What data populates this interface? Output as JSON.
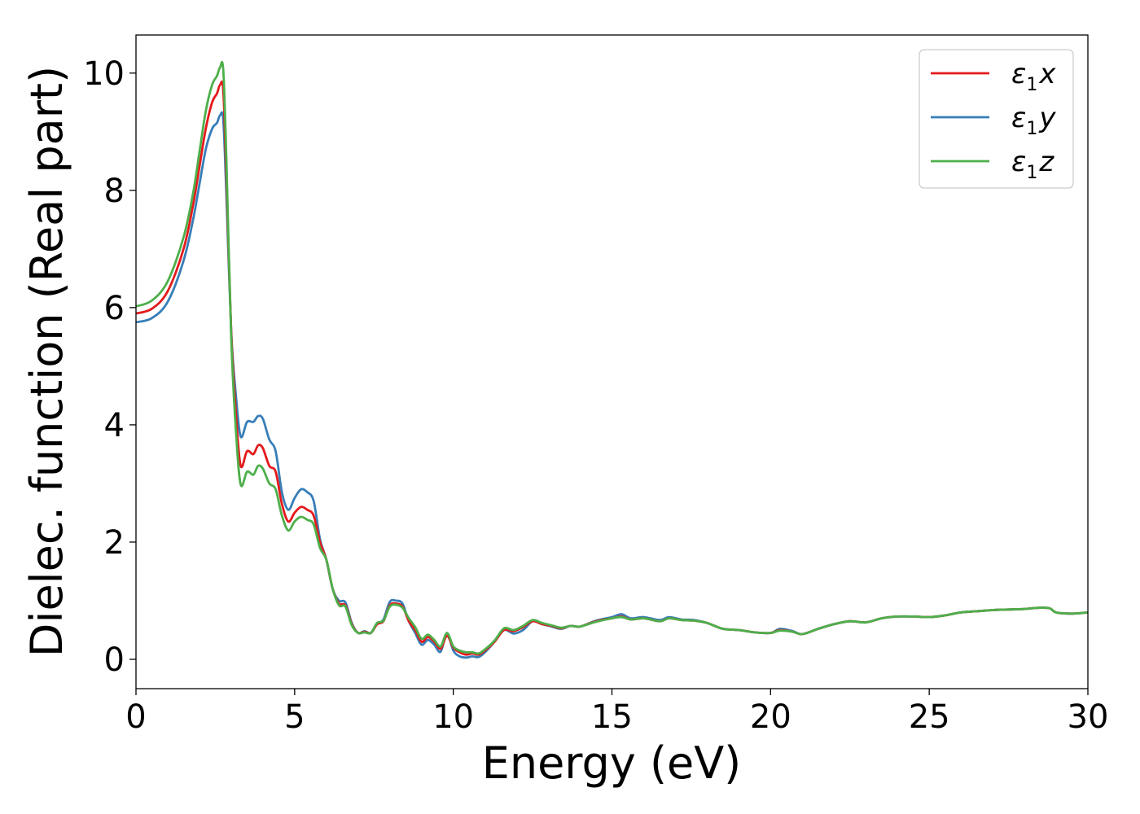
{
  "chart_data": {
    "type": "line",
    "title": "",
    "xlabel": "Energy (eV)",
    "ylabel": "Dielec. function (Real part)",
    "xlim": [
      0,
      30
    ],
    "ylim": [
      -0.5,
      10.65
    ],
    "xticks": [
      "0",
      "5",
      "10",
      "15",
      "20",
      "25",
      "30"
    ],
    "xtick_values": [
      0,
      5,
      10,
      15,
      20,
      25,
      30
    ],
    "yticks": [
      "0",
      "2",
      "4",
      "6",
      "8",
      "10"
    ],
    "ytick_values": [
      0,
      2,
      4,
      6,
      8,
      10
    ],
    "grid": false,
    "legend_position": "top-right",
    "x": [
      0,
      0.5,
      1.0,
      1.5,
      1.8,
      2.0,
      2.2,
      2.4,
      2.55,
      2.65,
      2.75,
      2.85,
      3.0,
      3.15,
      3.3,
      3.5,
      3.7,
      3.85,
      4.0,
      4.2,
      4.4,
      4.6,
      4.8,
      5.0,
      5.2,
      5.4,
      5.6,
      5.8,
      6.0,
      6.2,
      6.4,
      6.6,
      6.8,
      7.0,
      7.2,
      7.4,
      7.6,
      7.8,
      8.0,
      8.2,
      8.4,
      8.6,
      8.8,
      9.0,
      9.2,
      9.4,
      9.6,
      9.8,
      10.0,
      10.2,
      10.4,
      10.6,
      10.8,
      11.0,
      11.3,
      11.6,
      11.9,
      12.2,
      12.5,
      12.8,
      13.1,
      13.4,
      13.7,
      14.0,
      14.5,
      15.0,
      15.3,
      15.6,
      16.0,
      16.5,
      16.8,
      17.2,
      17.6,
      18.0,
      18.5,
      19.0,
      19.5,
      20.0,
      20.3,
      20.7,
      21.0,
      21.5,
      22.0,
      22.5,
      23.0,
      23.5,
      24.0,
      24.5,
      25.0,
      25.5,
      26.0,
      26.5,
      27.0,
      27.5,
      28.0,
      28.5,
      28.8,
      29.0,
      29.5,
      30.0
    ],
    "series": [
      {
        "name": "ε1x",
        "color": "#e31a1c",
        "values": [
          5.9,
          5.98,
          6.28,
          7.0,
          7.75,
          8.4,
          9.05,
          9.5,
          9.65,
          9.8,
          9.7,
          8.2,
          5.6,
          4.2,
          3.3,
          3.55,
          3.5,
          3.65,
          3.6,
          3.3,
          3.2,
          2.65,
          2.35,
          2.5,
          2.6,
          2.55,
          2.45,
          2.0,
          1.7,
          1.2,
          0.95,
          0.92,
          0.6,
          0.45,
          0.47,
          0.45,
          0.6,
          0.65,
          0.92,
          0.95,
          0.9,
          0.65,
          0.5,
          0.3,
          0.38,
          0.3,
          0.18,
          0.4,
          0.2,
          0.12,
          0.08,
          0.1,
          0.08,
          0.15,
          0.3,
          0.5,
          0.48,
          0.55,
          0.65,
          0.6,
          0.57,
          0.53,
          0.57,
          0.56,
          0.65,
          0.7,
          0.73,
          0.68,
          0.7,
          0.65,
          0.7,
          0.67,
          0.66,
          0.62,
          0.52,
          0.5,
          0.46,
          0.45,
          0.5,
          0.47,
          0.43,
          0.52,
          0.6,
          0.65,
          0.63,
          0.7,
          0.73,
          0.73,
          0.72,
          0.75,
          0.8,
          0.82,
          0.84,
          0.85,
          0.86,
          0.88,
          0.87,
          0.8,
          0.78,
          0.8
        ]
      },
      {
        "name": "ε1y",
        "color": "#377eb8",
        "values": [
          5.75,
          5.82,
          6.1,
          6.8,
          7.5,
          8.1,
          8.7,
          9.05,
          9.15,
          9.28,
          9.2,
          7.9,
          5.6,
          4.5,
          3.8,
          4.05,
          4.05,
          4.15,
          4.1,
          3.75,
          3.55,
          2.85,
          2.55,
          2.75,
          2.9,
          2.85,
          2.7,
          2.05,
          1.7,
          1.2,
          1.0,
          0.97,
          0.62,
          0.45,
          0.48,
          0.45,
          0.6,
          0.68,
          0.98,
          1.0,
          0.95,
          0.65,
          0.45,
          0.25,
          0.33,
          0.25,
          0.13,
          0.45,
          0.15,
          0.05,
          0.03,
          0.05,
          0.04,
          0.12,
          0.3,
          0.5,
          0.44,
          0.5,
          0.65,
          0.6,
          0.56,
          0.52,
          0.57,
          0.56,
          0.66,
          0.72,
          0.77,
          0.7,
          0.72,
          0.67,
          0.72,
          0.68,
          0.67,
          0.62,
          0.52,
          0.5,
          0.46,
          0.45,
          0.52,
          0.48,
          0.43,
          0.52,
          0.6,
          0.65,
          0.63,
          0.7,
          0.73,
          0.73,
          0.72,
          0.75,
          0.8,
          0.82,
          0.84,
          0.85,
          0.86,
          0.88,
          0.87,
          0.8,
          0.78,
          0.8
        ]
      },
      {
        "name": "ε1z",
        "color": "#4daf4a",
        "values": [
          6.02,
          6.12,
          6.45,
          7.2,
          7.95,
          8.65,
          9.35,
          9.8,
          9.95,
          10.1,
          10.05,
          8.5,
          5.5,
          3.9,
          2.98,
          3.2,
          3.15,
          3.3,
          3.25,
          3.0,
          2.9,
          2.45,
          2.2,
          2.35,
          2.43,
          2.38,
          2.3,
          1.9,
          1.7,
          1.2,
          0.92,
          0.9,
          0.58,
          0.45,
          0.46,
          0.45,
          0.62,
          0.66,
          0.9,
          0.93,
          0.88,
          0.7,
          0.55,
          0.35,
          0.42,
          0.33,
          0.22,
          0.45,
          0.22,
          0.15,
          0.12,
          0.12,
          0.1,
          0.17,
          0.32,
          0.53,
          0.5,
          0.57,
          0.67,
          0.62,
          0.58,
          0.54,
          0.57,
          0.56,
          0.64,
          0.7,
          0.72,
          0.68,
          0.7,
          0.65,
          0.7,
          0.67,
          0.66,
          0.62,
          0.52,
          0.5,
          0.46,
          0.45,
          0.49,
          0.47,
          0.43,
          0.52,
          0.6,
          0.65,
          0.63,
          0.7,
          0.73,
          0.73,
          0.72,
          0.75,
          0.8,
          0.82,
          0.84,
          0.85,
          0.86,
          0.88,
          0.87,
          0.8,
          0.78,
          0.8
        ]
      }
    ],
    "legend": [
      {
        "symbol": "ε",
        "sub": "1",
        "axis": "x"
      },
      {
        "symbol": "ε",
        "sub": "1",
        "axis": "y"
      },
      {
        "symbol": "ε",
        "sub": "1",
        "axis": "z"
      }
    ]
  }
}
